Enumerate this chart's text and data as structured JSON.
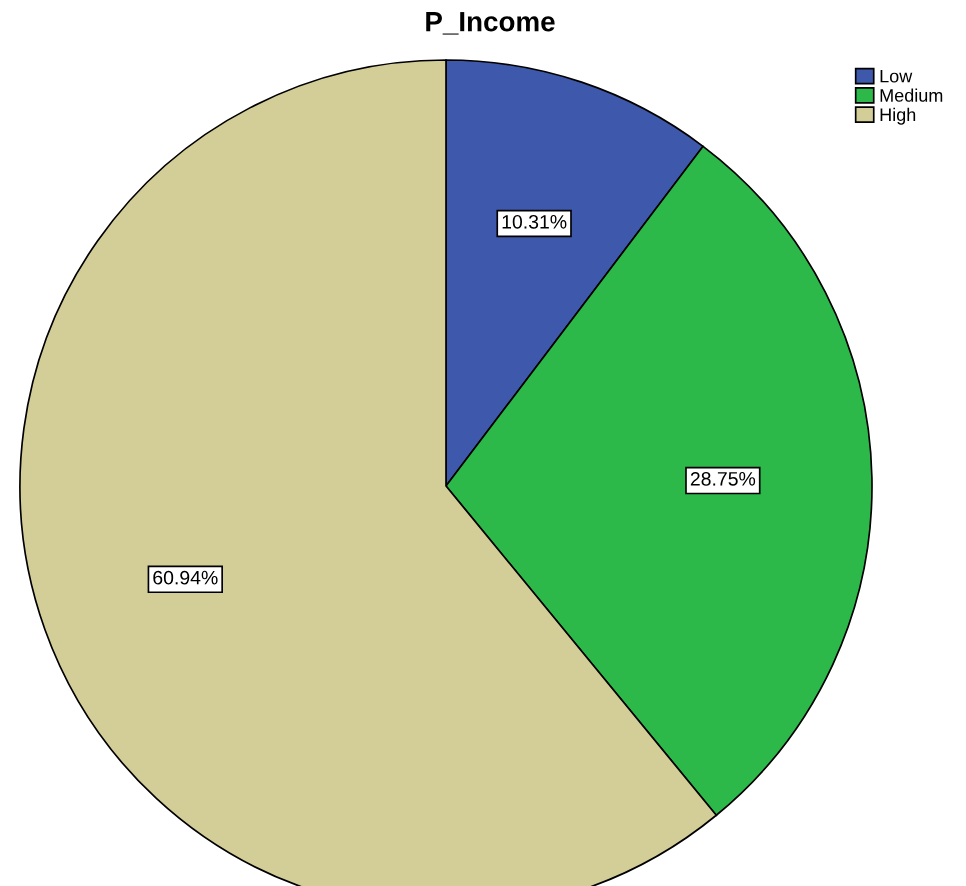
{
  "chart_data": {
    "type": "pie",
    "title": "P_Income",
    "categories": [
      "Low",
      "Medium",
      "High"
    ],
    "values": [
      10.31,
      28.75,
      60.94
    ],
    "colors": [
      "#3e58ac",
      "#2db84a",
      "#d3ce97"
    ],
    "value_labels": [
      "10.31%",
      "28.75%",
      "60.94%"
    ],
    "legend": "top right"
  }
}
